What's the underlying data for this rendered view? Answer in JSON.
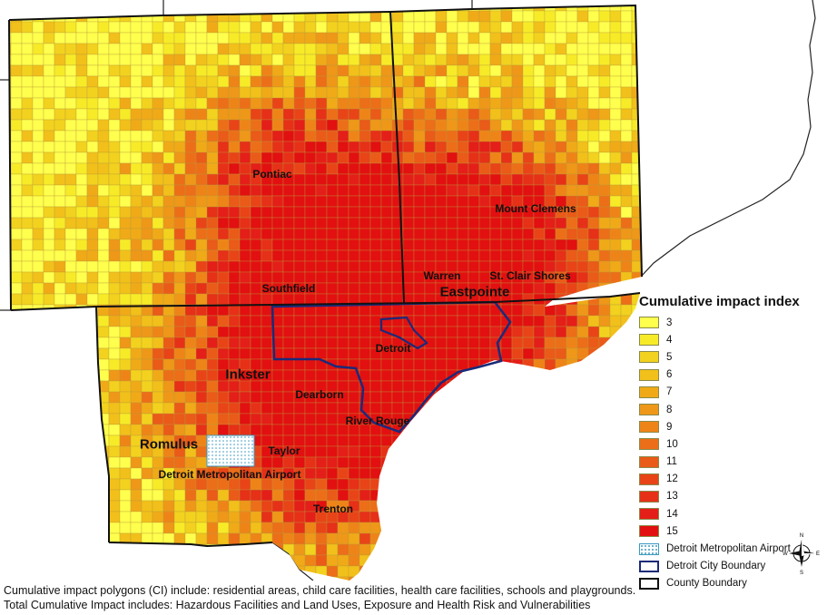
{
  "map": {
    "cities": [
      {
        "name": "Pontiac",
        "size": "normal"
      },
      {
        "name": "Mount Clemens",
        "size": "normal"
      },
      {
        "name": "Warren",
        "size": "normal"
      },
      {
        "name": "St. Clair Shores",
        "size": "normal"
      },
      {
        "name": "Southfield",
        "size": "normal"
      },
      {
        "name": "Eastpointe",
        "size": "big"
      },
      {
        "name": "Detroit",
        "size": "normal"
      },
      {
        "name": "Inkster",
        "size": "big"
      },
      {
        "name": "Dearborn",
        "size": "normal"
      },
      {
        "name": "River Rouge",
        "size": "normal"
      },
      {
        "name": "Romulus",
        "size": "big"
      },
      {
        "name": "Taylor",
        "size": "normal"
      },
      {
        "name": "Detroit Metropolitan Airport",
        "size": "normal"
      },
      {
        "name": "Trenton",
        "size": "normal"
      }
    ]
  },
  "legend": {
    "title": "Cumulative impact index",
    "classes": [
      {
        "label": "3",
        "color": "#ffff4d"
      },
      {
        "label": "4",
        "color": "#f7eb28"
      },
      {
        "label": "5",
        "color": "#f2d21e"
      },
      {
        "label": "6",
        "color": "#f2c01a"
      },
      {
        "label": "7",
        "color": "#f0aa18"
      },
      {
        "label": "8",
        "color": "#ee9718"
      },
      {
        "label": "9",
        "color": "#ee8418"
      },
      {
        "label": "10",
        "color": "#ec6e18"
      },
      {
        "label": "11",
        "color": "#ea5a18"
      },
      {
        "label": "12",
        "color": "#e84418"
      },
      {
        "label": "13",
        "color": "#e63018"
      },
      {
        "label": "14",
        "color": "#e41e18"
      },
      {
        "label": "15",
        "color": "#e21010"
      }
    ],
    "airport_label": "Detroit Metropolitan Airport",
    "city_boundary_label": "Detroit City Boundary",
    "county_boundary_label": "County Boundary"
  },
  "compass": {
    "n": "N",
    "s": "S",
    "e": "E",
    "w": "W"
  },
  "footnotes": {
    "line1": "Cumulative impact polygons (CI) include: residential areas, child care facilities, health care facilities, schools and playgrounds.",
    "line2": "Total Cumulative Impact includes: Hazardous Facilities and Land Uses, Exposure and Health Risk and Vulnerabilities"
  }
}
